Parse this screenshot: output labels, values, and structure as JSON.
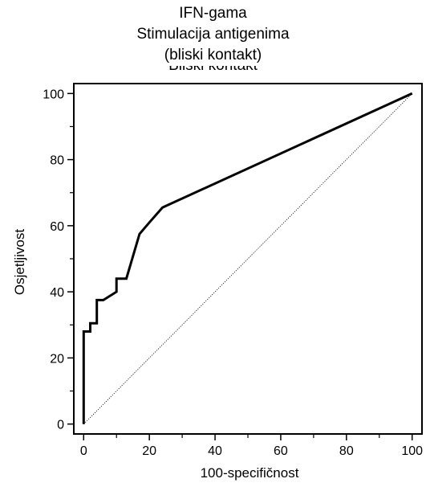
{
  "title_lines": [
    "IFN-gama",
    "Stimulacija antigenima",
    "(bliski kontakt)"
  ],
  "obscured_title": "Bliski kontakt",
  "chart_data": {
    "type": "line",
    "xlabel": "100-specifičnost",
    "ylabel": "Osjetljivost",
    "xlim": [
      -3,
      103
    ],
    "ylim": [
      -3,
      103
    ],
    "xticks": [
      0,
      20,
      40,
      60,
      80,
      100
    ],
    "yticks": [
      0,
      20,
      40,
      60,
      80,
      100
    ],
    "grid": false,
    "series": [
      {
        "style": "solid-thick",
        "color": "#000000",
        "x": [
          0,
          0,
          2,
          2,
          4,
          4,
          6,
          10,
          10,
          13,
          17,
          20,
          24,
          100
        ],
        "y": [
          0,
          28,
          28,
          30.5,
          30.5,
          37.5,
          37.5,
          40,
          44,
          44,
          57.5,
          61,
          65.5,
          100
        ]
      },
      {
        "style": "dotted-diagonal",
        "color": "#000000",
        "x": [
          0,
          100
        ],
        "y": [
          0,
          100
        ]
      }
    ]
  }
}
